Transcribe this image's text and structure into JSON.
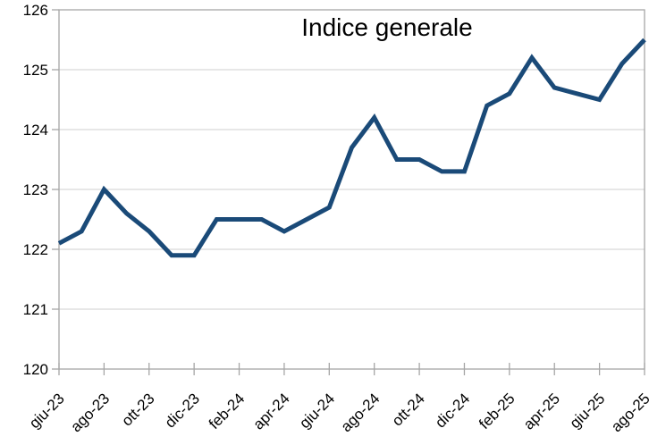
{
  "chart_data": {
    "type": "line",
    "title": "Indice generale",
    "x_tick_labels": [
      "giu-23",
      "ago-23",
      "ott-23",
      "dic-23",
      "feb-24",
      "apr-24",
      "giu-24",
      "ago-24",
      "ott-24",
      "dic-24",
      "feb-25",
      "apr-25",
      "giu-25",
      "ago-25"
    ],
    "points_per_tick": 2,
    "x_frequency": "monthly",
    "values": [
      122.1,
      122.3,
      123.0,
      122.6,
      122.3,
      121.9,
      121.9,
      122.5,
      122.5,
      122.5,
      122.3,
      122.5,
      122.7,
      123.7,
      124.2,
      123.5,
      123.5,
      123.3,
      123.3,
      124.4,
      124.6,
      125.2,
      124.7,
      124.6,
      124.5,
      125.1,
      125.5
    ],
    "ylim": [
      120,
      126
    ],
    "y_tick_labels": [
      "120",
      "121",
      "122",
      "123",
      "124",
      "125",
      "126"
    ],
    "grid": "horizontal",
    "legend": "none",
    "line_color": "#1a4a78",
    "axis_color": "#a6a6a6",
    "grid_color": "#cfcfcf",
    "text_color": "#000000"
  }
}
